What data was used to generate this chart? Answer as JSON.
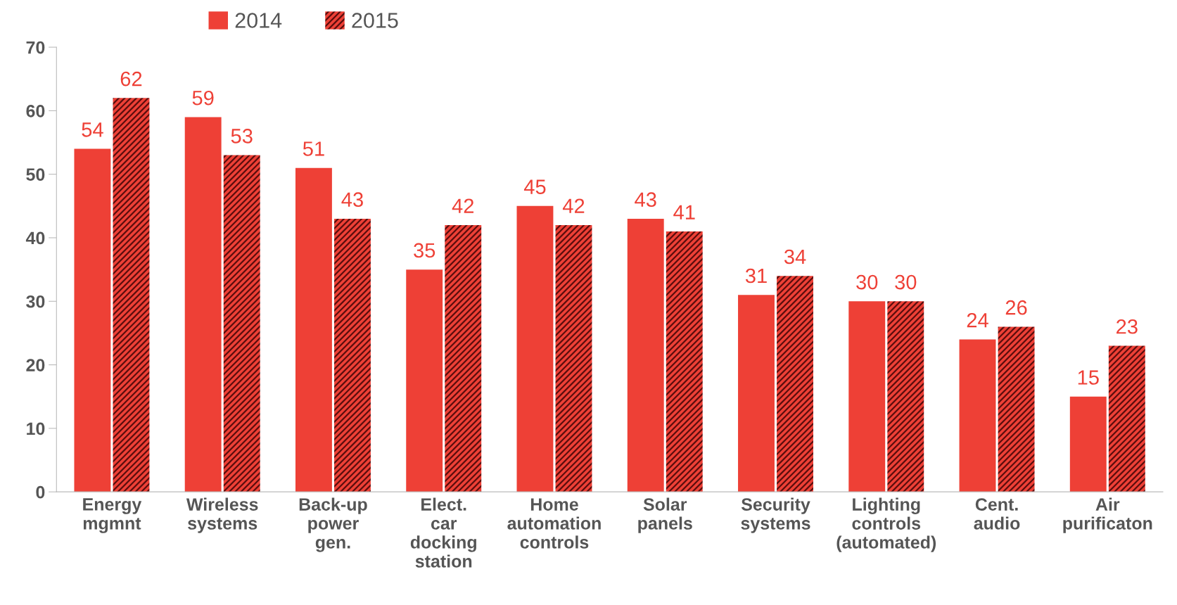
{
  "chart_data": {
    "type": "bar",
    "categories": [
      "Energy\nmgmnt",
      "Wireless\nsystems",
      "Back-up\npower\ngen.",
      "Elect.\ncar\ndocking\nstation",
      "Home\nautomation\ncontrols",
      "Solar\npanels",
      "Security\nsystems",
      "Lighting\ncontrols\n(automated)",
      "Cent.\naudio",
      "Air\npurificaton"
    ],
    "series": [
      {
        "name": "2014",
        "color": "#ee4036",
        "values": [
          54,
          59,
          51,
          35,
          45,
          43,
          31,
          30,
          24,
          15
        ]
      },
      {
        "name": "2015",
        "color": "#ee4036",
        "values": [
          62,
          53,
          43,
          42,
          42,
          41,
          34,
          30,
          26,
          23
        ]
      }
    ],
    "ylim": [
      0,
      70
    ],
    "yticks": [
      0,
      10,
      20,
      30,
      40,
      50,
      60,
      70
    ],
    "data_labels": true,
    "grid": false,
    "legend": "top left"
  }
}
